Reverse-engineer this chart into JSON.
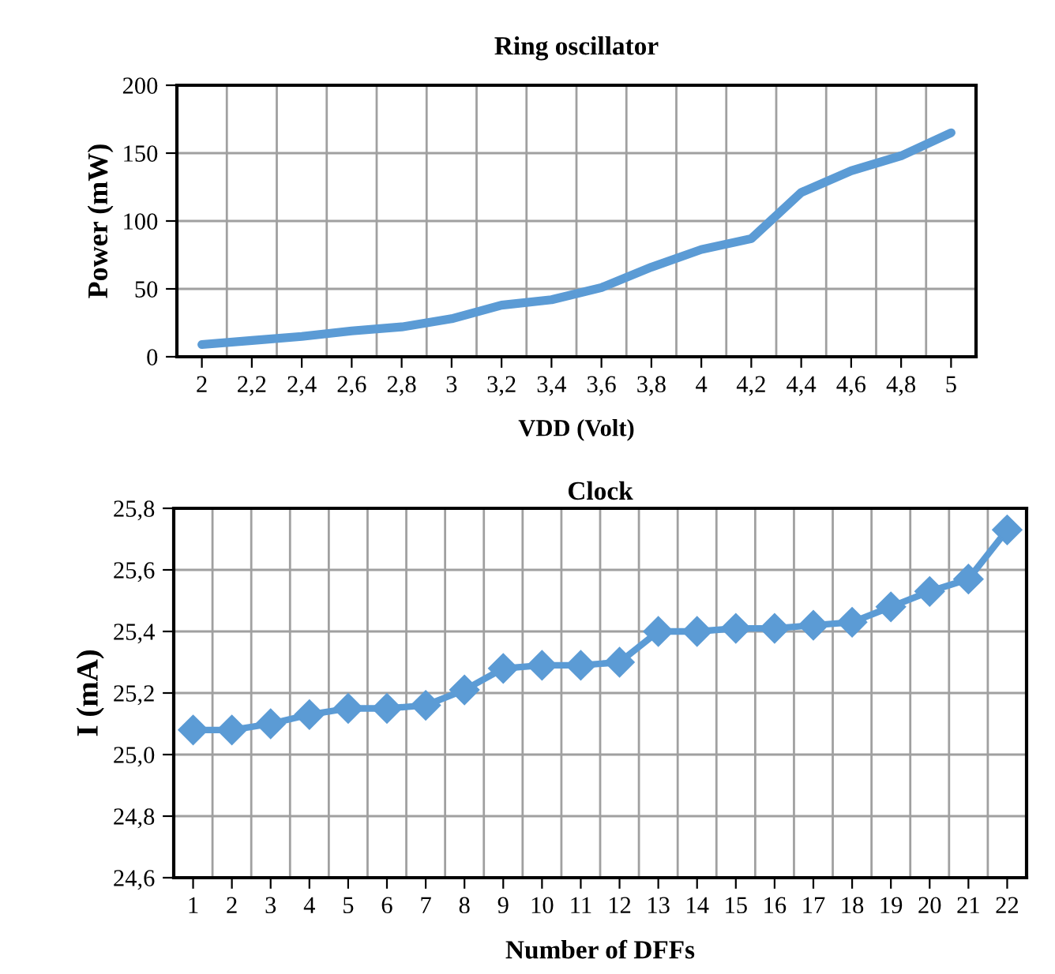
{
  "chart_data": [
    {
      "type": "line",
      "title": "Ring oscillator",
      "xlabel": "VDD (Volt)",
      "ylabel": "Power (mW)",
      "categories": [
        "2",
        "2,2",
        "2,4",
        "2,6",
        "2,8",
        "3",
        "3,2",
        "3,4",
        "3,6",
        "3,8",
        "4",
        "4,2",
        "4,4",
        "4,6",
        "4,8",
        "5"
      ],
      "series": [
        {
          "color": "#5b9bd5",
          "values": [
            9,
            12,
            15,
            19,
            22,
            28,
            38,
            42,
            51,
            66,
            79,
            87,
            121,
            137,
            148,
            165
          ]
        }
      ],
      "ylim": [
        0,
        200
      ],
      "yticks": [
        0,
        50,
        100,
        150,
        200
      ],
      "grid": true,
      "marker": "none",
      "line_style": "solid"
    },
    {
      "type": "line",
      "title": "Clock",
      "xlabel": "Number of DFFs",
      "ylabel": "I (mA)",
      "categories": [
        "1",
        "2",
        "3",
        "4",
        "5",
        "6",
        "7",
        "8",
        "9",
        "10",
        "11",
        "12",
        "13",
        "14",
        "15",
        "16",
        "17",
        "18",
        "19",
        "20",
        "21",
        "22"
      ],
      "series": [
        {
          "color": "#5b9bd5",
          "values": [
            25.08,
            25.08,
            25.1,
            25.13,
            25.15,
            25.15,
            25.16,
            25.21,
            25.28,
            25.29,
            25.29,
            25.3,
            25.4,
            25.4,
            25.41,
            25.41,
            25.42,
            25.43,
            25.48,
            25.53,
            25.57,
            25.73
          ]
        }
      ],
      "ylim": [
        24.6,
        25.8
      ],
      "yticks": [
        {
          "value": 24.6,
          "label": "24,6"
        },
        {
          "value": 24.8,
          "label": "24,8"
        },
        {
          "value": 25.0,
          "label": "25,0"
        },
        {
          "value": 25.2,
          "label": "25,2"
        },
        {
          "value": 25.4,
          "label": "25,4"
        },
        {
          "value": 25.6,
          "label": "25,6"
        },
        {
          "value": 25.8,
          "label": "25,8"
        }
      ],
      "grid": true,
      "marker": "diamond",
      "line_style": "solid"
    }
  ]
}
